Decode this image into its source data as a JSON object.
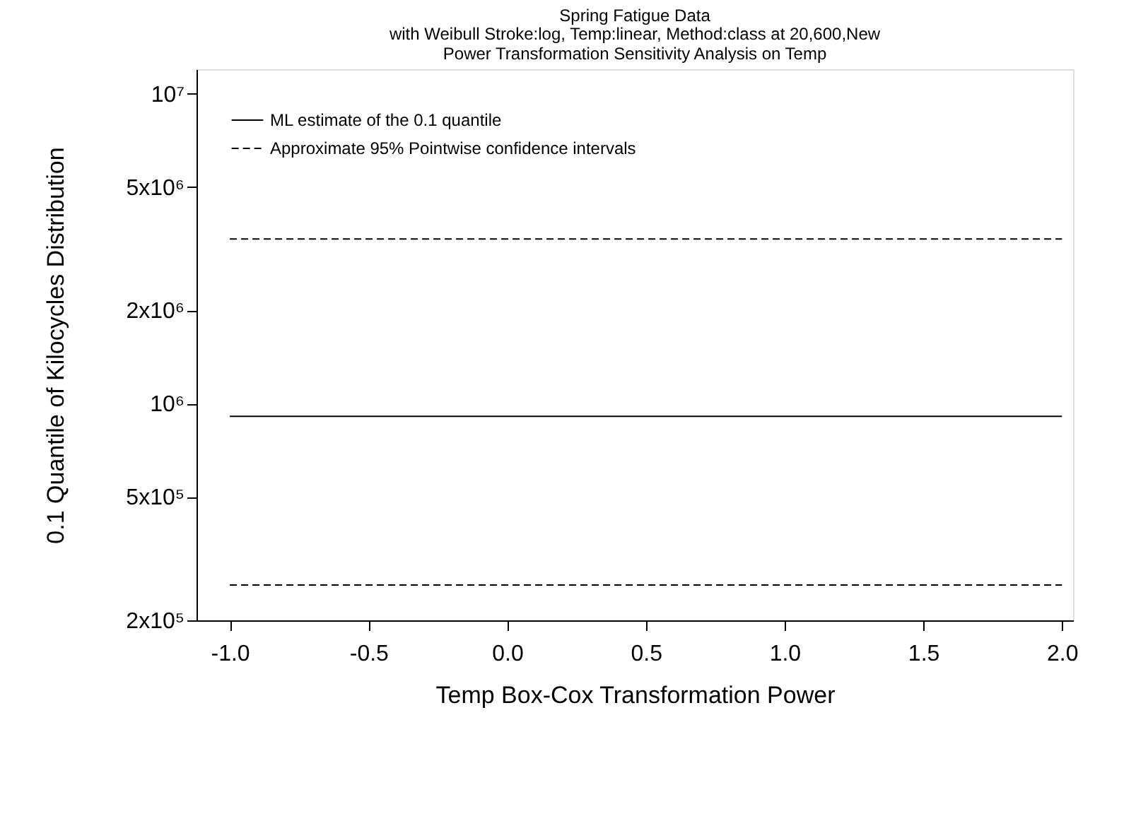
{
  "chart_data": {
    "type": "line",
    "title": "Spring Fatigue Data",
    "subtitle": [
      "with Weibull Stroke:log, Temp:linear, Method:class at 20,600,New",
      "Power Transformation Sensitivity Analysis on Temp"
    ],
    "xlabel": "Temp Box-Cox Transformation Power",
    "ylabel": "0.1 Quantile of Kilocycles Distribution",
    "x": [
      -1.0,
      2.0
    ],
    "log": true,
    "grid": false,
    "legend": "top left",
    "marker": "none",
    "series": [
      {
        "name": "ML estimate of the  0.1 quantile",
        "color": "#000000",
        "line_style": "solid",
        "values": [
          910000,
          910000
        ]
      },
      {
        "name": "Approximate  95% Pointwise confidence intervals",
        "color": "#000000",
        "line_style": "dashed",
        "values": [
          3400000,
          3400000
        ]
      },
      {
        "color": "#000000",
        "line_style": "dashed",
        "values": [
          260000,
          260000
        ]
      }
    ],
    "xlim": [
      -1.12,
      2.04
    ],
    "xticks": [
      {
        "value": -1,
        "label": "-1.0"
      },
      {
        "value": -0.5,
        "label": "-0.5"
      },
      {
        "value": 0,
        "label": "0.0"
      },
      {
        "value": 0.5,
        "label": "0.5"
      },
      {
        "value": 1,
        "label": "1.0"
      },
      {
        "value": 1.5,
        "label": "1.5"
      },
      {
        "value": 2,
        "label": "2.0"
      }
    ],
    "ylim": [
      200000,
      12000000
    ],
    "yticks": [
      {
        "value": 200000,
        "label": "2x10⁵"
      },
      {
        "value": 500000,
        "label": "5x10⁵"
      },
      {
        "value": 1000000,
        "label": "10⁶"
      },
      {
        "value": 2000000,
        "label": "2x10⁶"
      },
      {
        "value": 5000000,
        "label": "5x10⁶"
      },
      {
        "value": 10000000,
        "label": "10⁷"
      }
    ]
  }
}
